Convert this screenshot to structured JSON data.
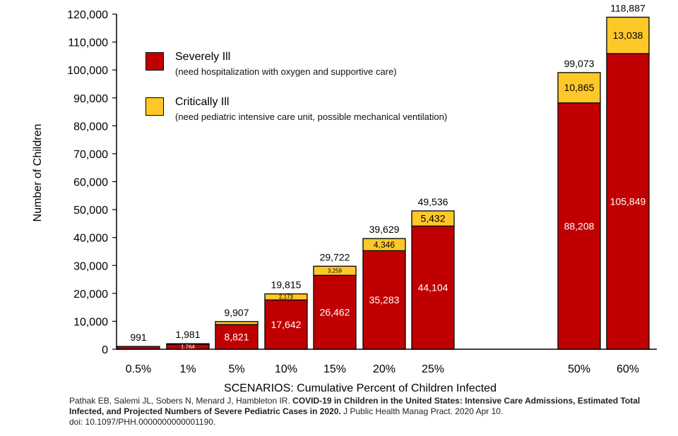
{
  "chart_data": {
    "type": "bar",
    "stacked": true,
    "title": "",
    "xlabel": "SCENARIOS: Cumulative Percent of Children Infected",
    "ylabel": "Number of Children",
    "ylim": [
      0,
      120000
    ],
    "yticks": [
      0,
      10000,
      20000,
      30000,
      40000,
      50000,
      60000,
      70000,
      80000,
      90000,
      100000,
      110000,
      120000
    ],
    "ytick_labels": [
      "0",
      "10,000",
      "20,000",
      "30,000",
      "40,000",
      "50,000",
      "60,000",
      "70,000",
      "80,000",
      "90,000",
      "100,000",
      "110,000",
      "120,000"
    ],
    "categories": [
      "0.5%",
      "1%",
      "5%",
      "10%",
      "15%",
      "20%",
      "25%",
      "50%",
      "60%"
    ],
    "series": [
      {
        "name": "Severely Ill",
        "description": "(need hospitalization with oxygen and supportive care)",
        "color": "#c00000",
        "values": [
          991,
          1764,
          8821,
          17642,
          26462,
          35283,
          44104,
          88208,
          105849
        ],
        "labels": [
          "",
          "1,764",
          "8,821",
          "17,642",
          "26,462",
          "35,283",
          "44,104",
          "88,208",
          "105,849"
        ]
      },
      {
        "name": "Critically Ill",
        "description": "(need pediatric intensive care unit, possible mechanical ventilation)",
        "color": "#ffc829",
        "values": [
          0,
          217,
          1086,
          2173,
          3259,
          4346,
          5432,
          10865,
          13038
        ],
        "labels": [
          "",
          "",
          "",
          "2,173",
          "3,259",
          "4,346",
          "5,432",
          "10,865",
          "13,038"
        ]
      }
    ],
    "totals": [
      991,
      1981,
      9907,
      19815,
      29722,
      39629,
      49536,
      99073,
      118887
    ],
    "total_labels": [
      "991",
      "1,981",
      "9,907",
      "19,815",
      "29,722",
      "39,629",
      "49,536",
      "99,073",
      "118,887"
    ],
    "legend_position": "top-left",
    "grid": false
  },
  "citation": {
    "authors": "Pathak EB, Salemi JL, Sobers N, Menard J, Hambleton IR.",
    "title": "COVID-19 in Children in the United States: Intensive Care Admissions, Estimated Total Infected, and Projected Numbers of Severe Pediatric Cases in 2020.",
    "journal": "J Public Health Manag Pract. 2020 Apr 10.",
    "doi": "doi: 10.1097/PHH.0000000000001190."
  }
}
